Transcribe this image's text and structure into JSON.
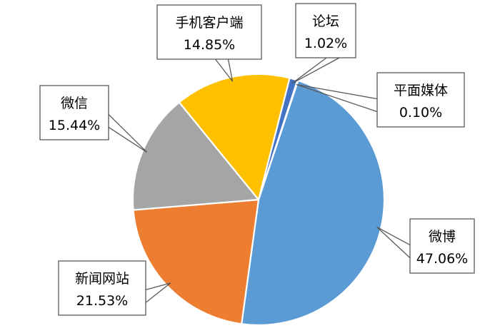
{
  "chart_data": {
    "type": "pie",
    "title": "",
    "start_angle_deg": 18,
    "direction": "clockwise",
    "slices": [
      {
        "label": "平面媒体",
        "value": 0.1,
        "value_label": "0.10%",
        "color": "#264478"
      },
      {
        "label": "微博",
        "value": 47.06,
        "value_label": "47.06%",
        "color": "#5B9BD5"
      },
      {
        "label": "新闻网站",
        "value": 21.53,
        "value_label": "21.53%",
        "color": "#ED7D31"
      },
      {
        "label": "微信",
        "value": 15.44,
        "value_label": "15.44%",
        "color": "#A5A5A5"
      },
      {
        "label": "手机客户端",
        "value": 14.85,
        "value_label": "14.85%",
        "color": "#FFC000"
      },
      {
        "label": "论坛",
        "value": 1.02,
        "value_label": "1.02%",
        "color": "#4472C4"
      }
    ],
    "slice_border_color": "#ffffff",
    "data_labels": "callout"
  }
}
